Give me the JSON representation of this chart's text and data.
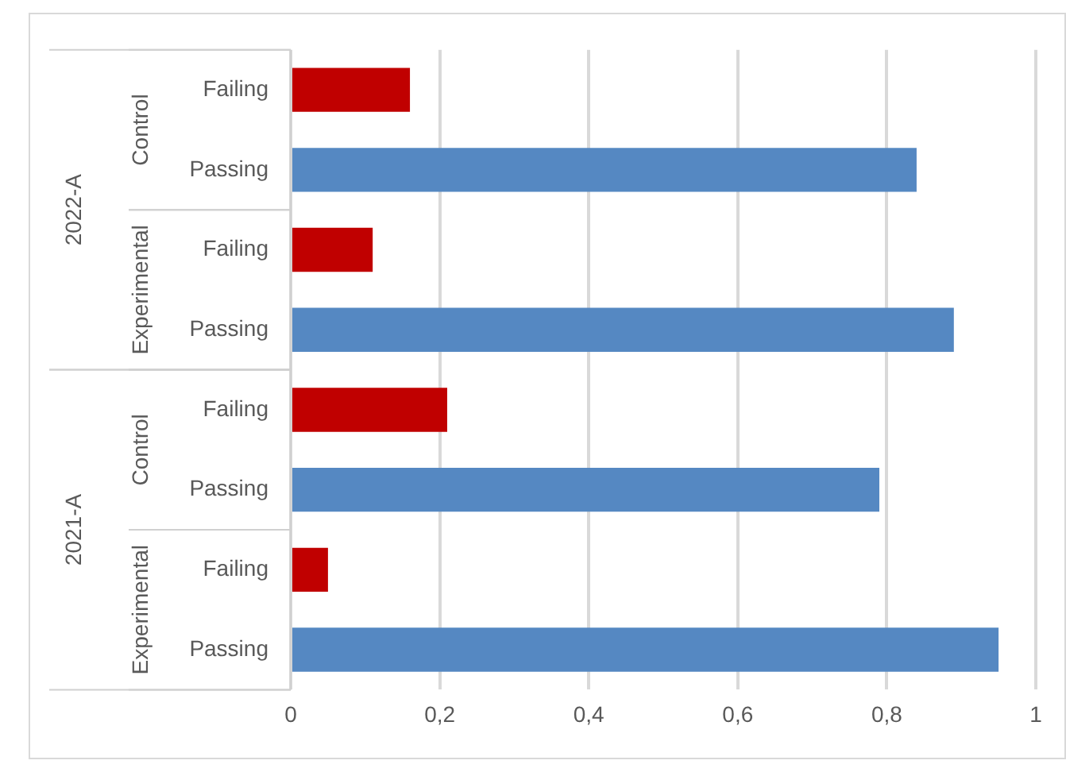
{
  "chart_data": {
    "type": "bar",
    "orientation": "horizontal",
    "categories": [
      "Failing",
      "Passing",
      "Failing",
      "Passing",
      "Failing",
      "Passing",
      "Failing",
      "Passing"
    ],
    "values": [
      0.16,
      0.84,
      0.11,
      0.89,
      0.21,
      0.79,
      0.05,
      0.95
    ],
    "colors": [
      "#c00000",
      "#5588c2",
      "#c00000",
      "#5588c2",
      "#c00000",
      "#5588c2",
      "#c00000",
      "#5588c2"
    ],
    "xlim": [
      0,
      1
    ],
    "xticks": [
      0,
      {
        "value": 0.2,
        "label": "0,2"
      },
      {
        "value": 0.4,
        "label": "0,4"
      },
      {
        "value": 0.6,
        "label": "0,6"
      },
      {
        "value": 0.8,
        "label": "0,8"
      },
      1
    ],
    "grid": "x",
    "legend": false,
    "annotations": [
      "Control",
      "Experimental",
      "Control",
      "Experimental",
      "2022-A",
      "2021-A"
    ]
  }
}
